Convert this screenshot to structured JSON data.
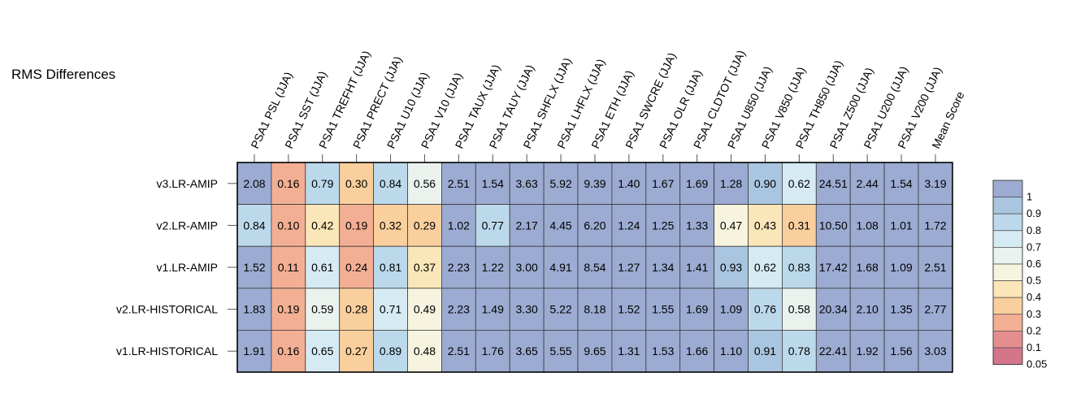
{
  "chart_data": {
    "type": "heatmap",
    "title": "RMS Differences",
    "columns": [
      "PSA1 PSL (JJA)",
      "PSA1 SST (JJA)",
      "PSA1 TREFHT (JJA)",
      "PSA1 PRECT (JJA)",
      "PSA1 U10 (JJA)",
      "PSA1 V10 (JJA)",
      "PSA1 TAUX (JJA)",
      "PSA1 TAUY (JJA)",
      "PSA1 SHFLX (JJA)",
      "PSA1 LHFLX (JJA)",
      "PSA1 ETH (JJA)",
      "PSA1 SWCRE (JJA)",
      "PSA1 OLR (JJA)",
      "PSA1 CLDTOT (JJA)",
      "PSA1 U850 (JJA)",
      "PSA1 V850 (JJA)",
      "PSA1 TH850 (JJA)",
      "PSA1 Z500 (JJA)",
      "PSA1 U200 (JJA)",
      "PSA1 V200 (JJA)",
      "Mean Score"
    ],
    "rows": [
      "v3.LR-AMIP",
      "v2.LR-AMIP",
      "v1.LR-AMIP",
      "v2.LR-HISTORICAL",
      "v1.LR-HISTORICAL"
    ],
    "values": [
      [
        "2.08",
        "0.16",
        "0.79",
        "0.30",
        "0.84",
        "0.56",
        "2.51",
        "1.54",
        "3.63",
        "5.92",
        "9.39",
        "1.40",
        "1.67",
        "1.69",
        "1.28",
        "0.90",
        "0.62",
        "24.51",
        "2.44",
        "1.54",
        "3.19"
      ],
      [
        "0.84",
        "0.10",
        "0.42",
        "0.19",
        "0.32",
        "0.29",
        "1.02",
        "0.77",
        "2.17",
        "4.45",
        "6.20",
        "1.24",
        "1.25",
        "1.33",
        "0.47",
        "0.43",
        "0.31",
        "10.50",
        "1.08",
        "1.01",
        "1.72"
      ],
      [
        "1.52",
        "0.11",
        "0.61",
        "0.24",
        "0.81",
        "0.37",
        "2.23",
        "1.22",
        "3.00",
        "4.91",
        "8.54",
        "1.27",
        "1.34",
        "1.41",
        "0.93",
        "0.62",
        "0.83",
        "17.42",
        "1.68",
        "1.09",
        "2.51"
      ],
      [
        "1.83",
        "0.19",
        "0.59",
        "0.28",
        "0.71",
        "0.49",
        "2.23",
        "1.49",
        "3.30",
        "5.22",
        "8.18",
        "1.52",
        "1.55",
        "1.69",
        "1.09",
        "0.76",
        "0.58",
        "20.34",
        "2.10",
        "1.35",
        "2.77"
      ],
      [
        "1.91",
        "0.16",
        "0.65",
        "0.27",
        "0.89",
        "0.48",
        "2.51",
        "1.76",
        "3.65",
        "5.55",
        "9.65",
        "1.31",
        "1.53",
        "1.66",
        "1.10",
        "0.91",
        "0.78",
        "22.41",
        "1.92",
        "1.56",
        "3.03"
      ]
    ],
    "colorbar": {
      "labels": [
        "1",
        "0.9",
        "0.8",
        "0.7",
        "0.6",
        "0.5",
        "0.4",
        "0.3",
        "0.2",
        "0.1",
        "0.05"
      ],
      "colors": [
        "#9babd1",
        "#a9c5df",
        "#bcd9ec",
        "#d5eaf3",
        "#eaf2ee",
        "#f6f3df",
        "#fbe6b9",
        "#f9cf9d",
        "#f3af93",
        "#e68e8f",
        "#d4758a"
      ]
    }
  }
}
